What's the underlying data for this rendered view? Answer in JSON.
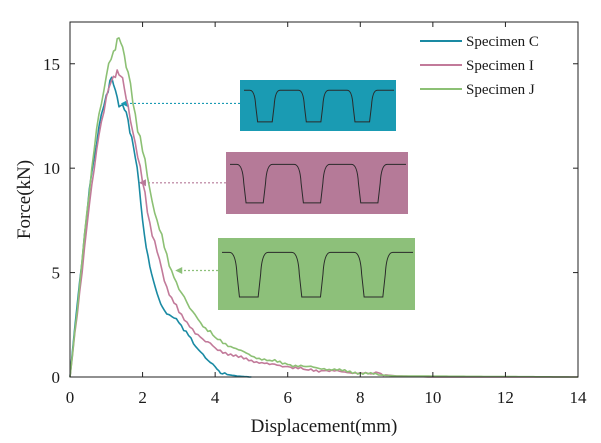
{
  "chart_data": {
    "type": "line",
    "title": "",
    "xlabel": "Displacement(mm)",
    "ylabel": "Force(kN)",
    "xlim": [
      0,
      14
    ],
    "ylim": [
      0,
      17
    ],
    "xticks": [
      0,
      2,
      4,
      6,
      8,
      10,
      12,
      14
    ],
    "yticks": [
      0,
      5,
      10,
      15
    ],
    "grid": false,
    "legend_position": "top-right",
    "series": [
      {
        "name": "Specimen C",
        "color": "#1a8aa3",
        "x": [
          0,
          0.2,
          0.4,
          0.6,
          0.8,
          1.0,
          1.1,
          1.2,
          1.3,
          1.4,
          1.5,
          1.6,
          1.7,
          1.8,
          1.9,
          2.0,
          2.1,
          2.2,
          2.3,
          2.4,
          2.5,
          2.6,
          2.8,
          3.0,
          3.2,
          3.4,
          3.6,
          3.8,
          4.0,
          4.1,
          4.2,
          4.4,
          4.6,
          4.8,
          5.0
        ],
        "y": [
          0,
          3.5,
          6.8,
          9.8,
          12.0,
          13.5,
          14.2,
          14.0,
          13.4,
          13.0,
          12.8,
          12.3,
          11.5,
          10.5,
          9.3,
          7.5,
          6.2,
          5.3,
          4.6,
          4.0,
          3.5,
          3.2,
          2.9,
          2.6,
          2.2,
          1.6,
          1.2,
          0.8,
          0.5,
          0.3,
          0.15,
          0.1,
          0.05,
          0.02,
          0
        ]
      },
      {
        "name": "Specimen I",
        "color": "#c27a9a",
        "x": [
          0,
          0.2,
          0.4,
          0.6,
          0.8,
          1.0,
          1.2,
          1.3,
          1.4,
          1.5,
          1.6,
          1.8,
          2.0,
          2.2,
          2.4,
          2.6,
          2.8,
          3.0,
          3.3,
          3.6,
          4.0,
          4.5,
          5.0,
          5.5,
          6.0,
          6.5,
          7.0,
          7.5,
          8.0,
          8.3,
          8.5,
          8.7,
          9.0,
          10.0,
          14.0
        ],
        "y": [
          0,
          3.0,
          6.2,
          9.2,
          11.6,
          13.4,
          14.4,
          14.7,
          14.4,
          13.8,
          13.0,
          11.2,
          9.3,
          7.4,
          6.0,
          4.6,
          3.8,
          3.1,
          2.4,
          1.9,
          1.4,
          1.0,
          0.8,
          0.6,
          0.5,
          0.35,
          0.3,
          0.25,
          0.2,
          0.15,
          0.2,
          0.1,
          0.05,
          0,
          0
        ]
      },
      {
        "name": "Specimen J",
        "color": "#8cc074",
        "x": [
          0,
          0.2,
          0.4,
          0.6,
          0.8,
          1.0,
          1.2,
          1.3,
          1.4,
          1.5,
          1.6,
          1.8,
          2.0,
          2.2,
          2.4,
          2.6,
          2.8,
          3.0,
          3.3,
          3.6,
          4.0,
          4.5,
          5.0,
          5.5,
          6.0,
          6.5,
          7.0,
          7.5,
          8.0,
          8.5,
          9.0,
          14.0
        ],
        "y": [
          0,
          3.2,
          6.8,
          10.0,
          12.6,
          14.4,
          15.6,
          16.2,
          16.0,
          15.4,
          14.6,
          12.6,
          10.8,
          9.0,
          7.5,
          6.2,
          5.1,
          4.2,
          3.3,
          2.6,
          1.9,
          1.4,
          1.0,
          0.8,
          0.6,
          0.5,
          0.4,
          0.3,
          0.2,
          0.1,
          0.05,
          0
        ]
      }
    ],
    "insets": [
      {
        "name": "Specimen C",
        "fill": "#1a9bb3",
        "points_to": {
          "x": 1.4,
          "y": 13.1
        }
      },
      {
        "name": "Specimen I",
        "fill": "#b57a98",
        "points_to": {
          "x": 1.9,
          "y": 9.3
        }
      },
      {
        "name": "Specimen J",
        "fill": "#8dc07a",
        "points_to": {
          "x": 2.9,
          "y": 5.1
        }
      }
    ]
  }
}
